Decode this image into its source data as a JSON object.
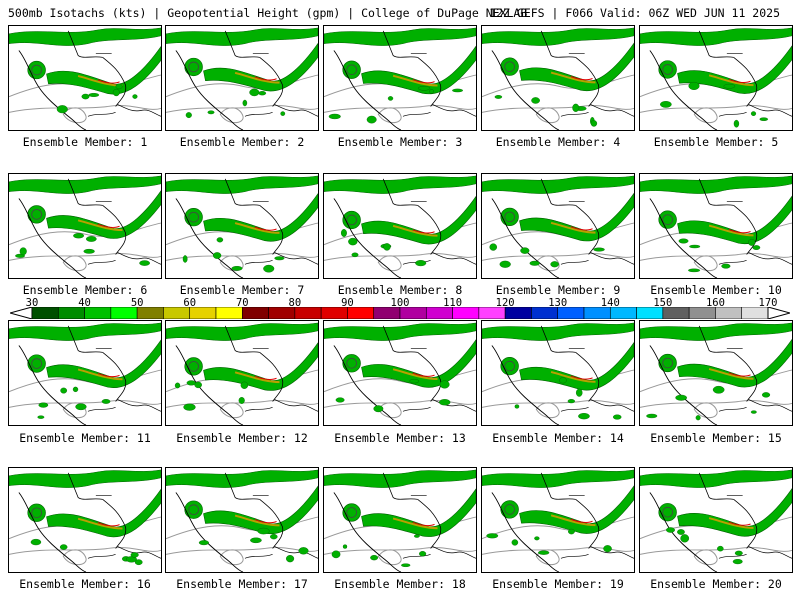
{
  "title": {
    "left": "500mb Isotachs (kts) | Geopotential Height (gpm) | College of DuPage NEXLAB",
    "right": "12Z GEFS | F066 Valid: 06Z WED JUN 11 2025"
  },
  "members": [
    {
      "label": "Ensemble Member: 1"
    },
    {
      "label": "Ensemble Member: 2"
    },
    {
      "label": "Ensemble Member: 3"
    },
    {
      "label": "Ensemble Member: 4"
    },
    {
      "label": "Ensemble Member: 5"
    },
    {
      "label": "Ensemble Member: 6"
    },
    {
      "label": "Ensemble Member: 7"
    },
    {
      "label": "Ensemble Member: 8"
    },
    {
      "label": "Ensemble Member: 9"
    },
    {
      "label": "Ensemble Member: 10"
    },
    {
      "label": "Ensemble Member: 11"
    },
    {
      "label": "Ensemble Member: 12"
    },
    {
      "label": "Ensemble Member: 13"
    },
    {
      "label": "Ensemble Member: 14"
    },
    {
      "label": "Ensemble Member: 15"
    },
    {
      "label": "Ensemble Member: 16"
    },
    {
      "label": "Ensemble Member: 17"
    },
    {
      "label": "Ensemble Member: 18"
    },
    {
      "label": "Ensemble Member: 19"
    },
    {
      "label": "Ensemble Member: 20"
    }
  ],
  "colorbar": {
    "labels": [
      "30",
      "40",
      "50",
      "60",
      "70",
      "80",
      "90",
      "100",
      "110",
      "120",
      "130",
      "140",
      "150",
      "160",
      "170"
    ],
    "colors": [
      "#005000",
      "#008c00",
      "#00c000",
      "#00ff00",
      "#808000",
      "#c8c800",
      "#e6d200",
      "#ffff00",
      "#800000",
      "#a00000",
      "#c80000",
      "#e00000",
      "#ff0000",
      "#900070",
      "#b000a0",
      "#d000d0",
      "#ff00ff",
      "#ff40ff",
      "#0000a0",
      "#0030d0",
      "#0060ff",
      "#0090ff",
      "#00b8ff",
      "#00e0ff",
      "#606060",
      "#909090",
      "#c0c0c0",
      "#e0e0e0"
    ]
  }
}
